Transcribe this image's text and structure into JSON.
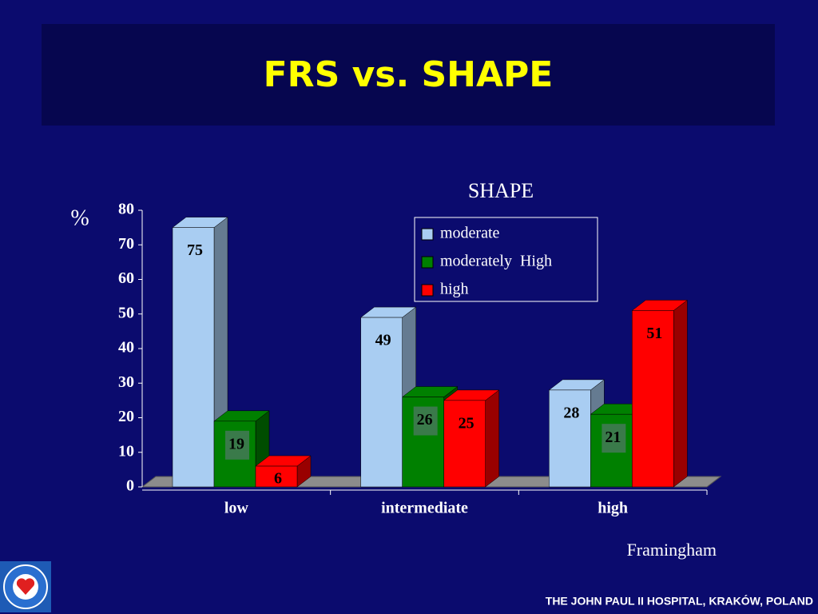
{
  "chart_data": {
    "type": "bar3d",
    "title": "FRS vs. SHAPE",
    "legend_title": "SHAPE",
    "y_label": "%",
    "x_label": "Framingham",
    "categories": [
      "low",
      "intermediate",
      "high"
    ],
    "series": [
      {
        "name": "moderate",
        "color": "#a9cdf2",
        "values": [
          75,
          49,
          28
        ]
      },
      {
        "name": "moderately  High",
        "color": "#008000",
        "values": [
          19,
          26,
          21
        ]
      },
      {
        "name": "high",
        "color": "#ff0000",
        "values": [
          6,
          25,
          51
        ]
      }
    ],
    "ylim": [
      0,
      80
    ],
    "yticks": [
      0,
      10,
      20,
      30,
      40,
      50,
      60,
      70,
      80
    ],
    "footer": "THE JOHN PAUL II HOSPITAL, KRAKÓW,  POLAND"
  }
}
